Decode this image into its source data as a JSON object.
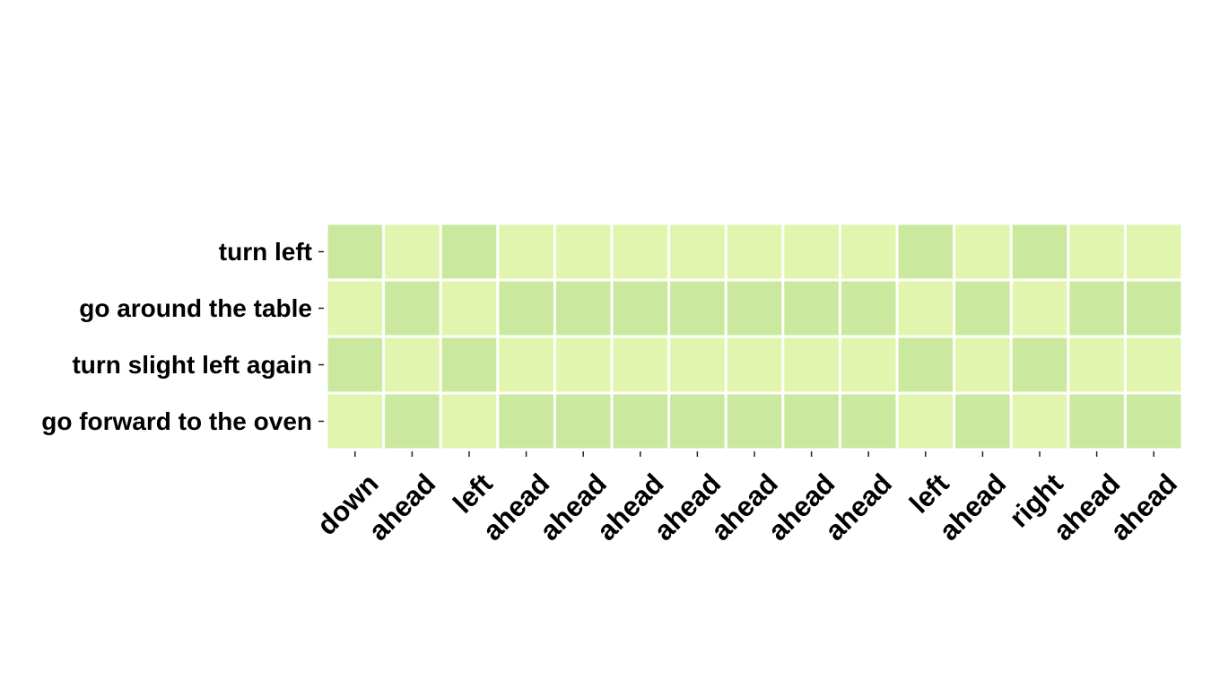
{
  "chart_data": {
    "type": "heatmap",
    "title": "",
    "xlabel": "",
    "ylabel": "",
    "x": [
      "down",
      "ahead",
      "left",
      "ahead",
      "ahead",
      "ahead",
      "ahead",
      "ahead",
      "ahead",
      "ahead",
      "left",
      "ahead",
      "right",
      "ahead",
      "ahead"
    ],
    "y": [
      "turn left",
      "go around the table",
      "turn slight left again",
      "go forward to the oven"
    ],
    "values": [
      [
        0.3,
        0.18,
        0.3,
        0.18,
        0.18,
        0.18,
        0.18,
        0.18,
        0.18,
        0.18,
        0.3,
        0.18,
        0.3,
        0.18,
        0.18
      ],
      [
        0.18,
        0.3,
        0.18,
        0.3,
        0.3,
        0.3,
        0.3,
        0.3,
        0.3,
        0.3,
        0.18,
        0.3,
        0.18,
        0.3,
        0.3
      ],
      [
        0.3,
        0.18,
        0.3,
        0.18,
        0.18,
        0.18,
        0.18,
        0.18,
        0.18,
        0.18,
        0.3,
        0.18,
        0.3,
        0.18,
        0.18
      ],
      [
        0.18,
        0.3,
        0.18,
        0.3,
        0.3,
        0.3,
        0.3,
        0.3,
        0.3,
        0.3,
        0.18,
        0.3,
        0.18,
        0.3,
        0.3
      ]
    ],
    "colormap": {
      "low": "#e2f5ae",
      "high": "#cbe99e"
    },
    "grid": false,
    "colorbar": false
  }
}
